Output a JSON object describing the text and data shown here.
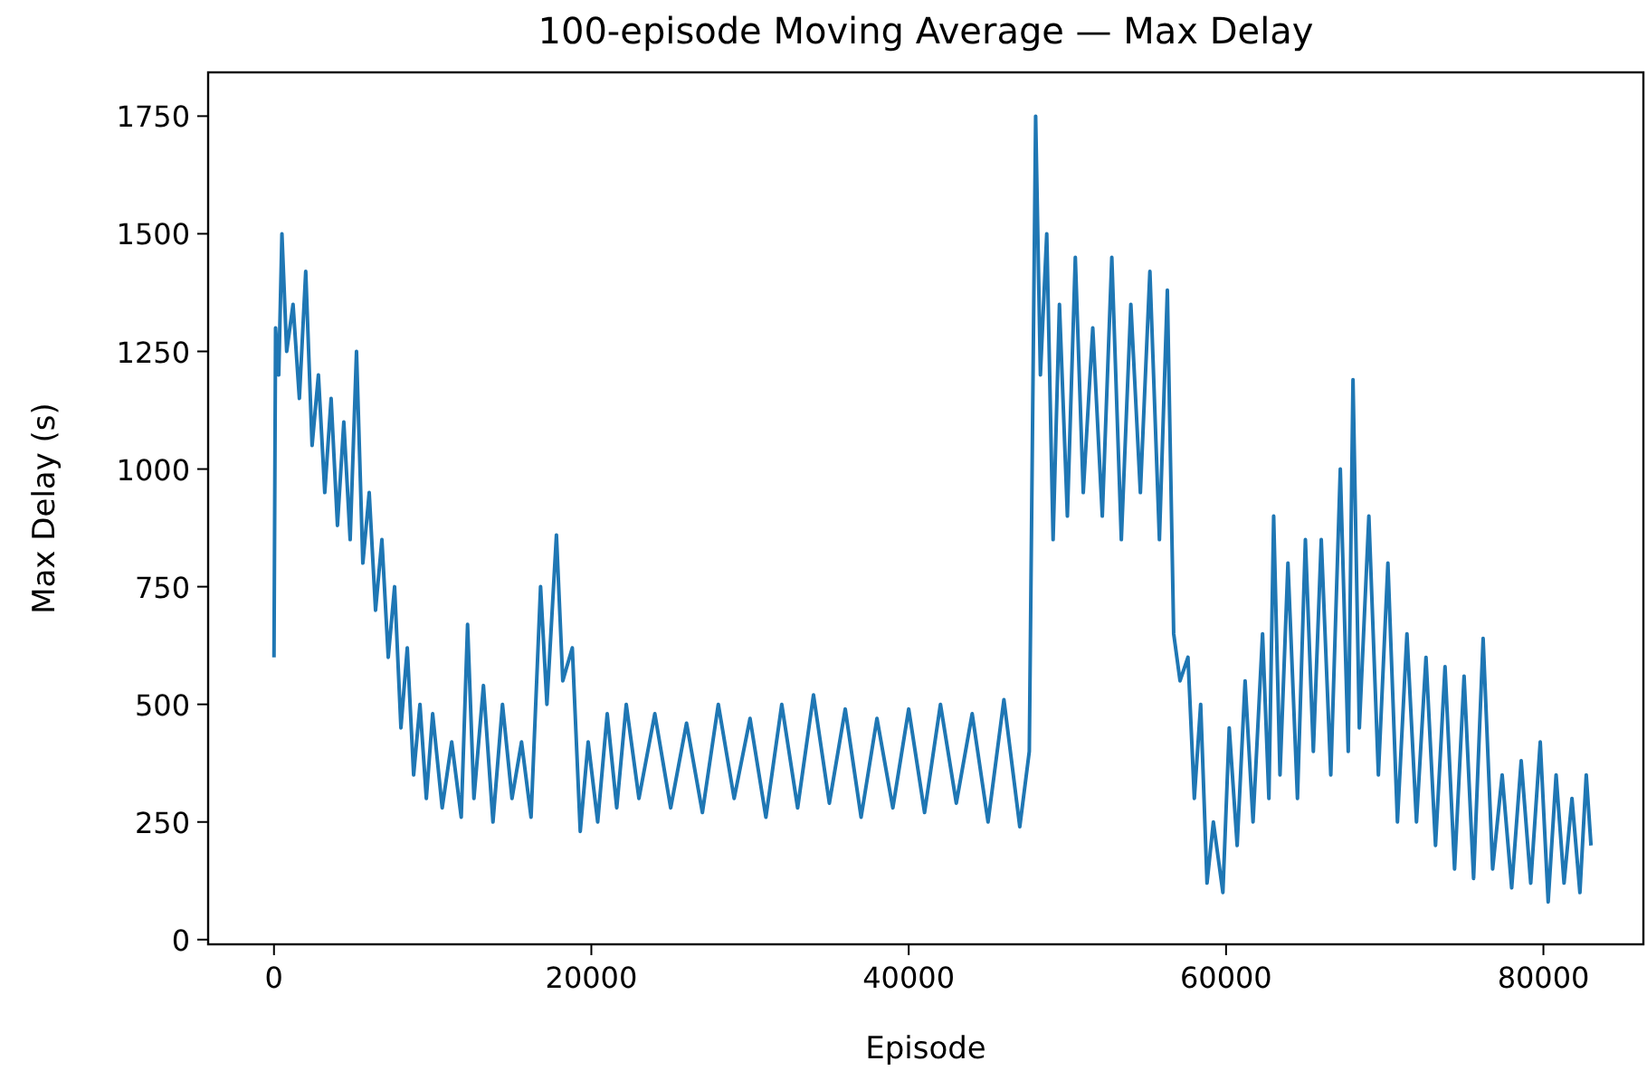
{
  "chart_data": {
    "type": "line",
    "title": "100-episode Moving Average  — Max Delay",
    "xlabel": "Episode",
    "ylabel": "Max Delay (s)",
    "xlim": [
      -4150,
      86300
    ],
    "ylim": [
      -10,
      1843
    ],
    "xticks": [
      0,
      20000,
      40000,
      60000,
      80000
    ],
    "yticks": [
      0,
      250,
      500,
      750,
      1000,
      1250,
      1500,
      1750
    ],
    "grid": false,
    "x": [
      0,
      100,
      300,
      500,
      800,
      1200,
      1600,
      2000,
      2400,
      2800,
      3200,
      3600,
      4000,
      4400,
      4800,
      5200,
      5600,
      6000,
      6400,
      6800,
      7200,
      7600,
      8000,
      8400,
      8800,
      9200,
      9600,
      10000,
      10600,
      11200,
      11800,
      12200,
      12600,
      13200,
      13800,
      14400,
      15000,
      15600,
      16200,
      16800,
      17200,
      17800,
      18200,
      18800,
      19300,
      19800,
      20400,
      21000,
      21600,
      22200,
      23000,
      24000,
      25000,
      26000,
      27000,
      28000,
      29000,
      30000,
      31000,
      32000,
      33000,
      34000,
      35000,
      36000,
      37000,
      38000,
      39000,
      40000,
      41000,
      42000,
      43000,
      44000,
      45000,
      46000,
      47000,
      47600,
      48000,
      48300,
      48700,
      49100,
      49500,
      50000,
      50500,
      51000,
      51600,
      52200,
      52800,
      53400,
      54000,
      54600,
      55200,
      55800,
      56300,
      56700,
      57100,
      57600,
      58000,
      58400,
      58800,
      59200,
      59800,
      60200,
      60700,
      61200,
      61700,
      62300,
      62700,
      63000,
      63400,
      63900,
      64500,
      65000,
      65500,
      66000,
      66600,
      67200,
      67700,
      68000,
      68400,
      69000,
      69600,
      70200,
      70800,
      71400,
      72000,
      72600,
      73200,
      73800,
      74400,
      75000,
      75600,
      76200,
      76800,
      77400,
      78000,
      78600,
      79200,
      79800,
      80300,
      80800,
      81300,
      81800,
      82300,
      82700,
      83000
    ],
    "series": [
      {
        "color": "#1f77b4",
        "values": [
          600,
          1300,
          1200,
          1500,
          1250,
          1350,
          1150,
          1420,
          1050,
          1200,
          950,
          1150,
          880,
          1100,
          850,
          1250,
          800,
          950,
          700,
          850,
          600,
          750,
          450,
          620,
          350,
          500,
          300,
          480,
          280,
          420,
          260,
          670,
          300,
          540,
          250,
          500,
          300,
          420,
          260,
          750,
          500,
          860,
          550,
          620,
          230,
          420,
          250,
          480,
          280,
          500,
          300,
          480,
          280,
          460,
          270,
          500,
          300,
          470,
          260,
          500,
          280,
          520,
          290,
          490,
          260,
          470,
          280,
          490,
          270,
          500,
          290,
          480,
          250,
          510,
          240,
          400,
          1750,
          1200,
          1500,
          850,
          1350,
          900,
          1450,
          950,
          1300,
          900,
          1450,
          850,
          1350,
          950,
          1420,
          850,
          1380,
          650,
          550,
          600,
          300,
          500,
          120,
          250,
          100,
          450,
          200,
          550,
          250,
          650,
          300,
          900,
          350,
          800,
          300,
          850,
          400,
          850,
          350,
          1000,
          400,
          1190,
          450,
          900,
          350,
          800,
          250,
          650,
          250,
          600,
          200,
          580,
          150,
          560,
          130,
          640,
          150,
          350,
          110,
          380,
          120,
          420,
          80,
          350,
          120,
          300,
          100,
          350,
          200
        ]
      }
    ]
  }
}
